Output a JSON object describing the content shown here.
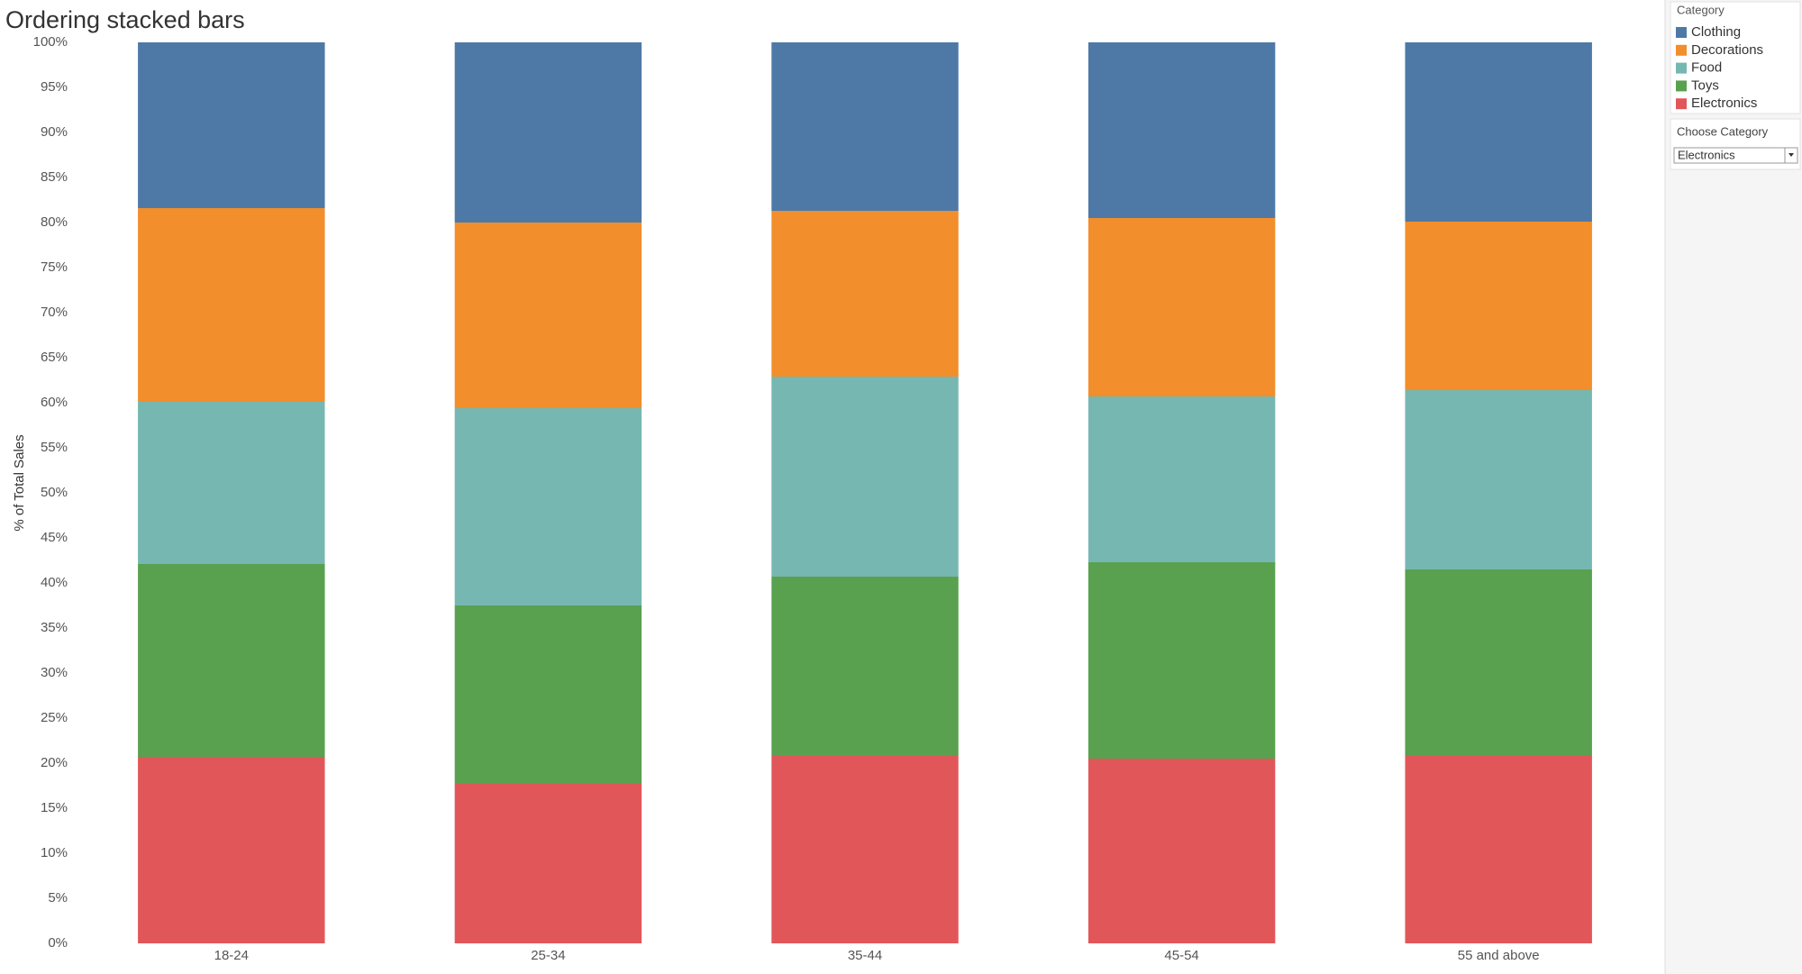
{
  "chart_data": {
    "type": "stacked_bar",
    "title": "Ordering stacked bars",
    "y_label": "% of Total Sales",
    "categories": [
      "18-24",
      "25-34",
      "35-44",
      "45-54",
      "55 and above"
    ],
    "legend_title": "Category",
    "series": [
      {
        "name": "Clothing",
        "color": "#4e79a7",
        "values": [
          18.4,
          20.0,
          18.7,
          19.5,
          19.9
        ]
      },
      {
        "name": "Decorations",
        "color": "#f28e2b",
        "values": [
          21.5,
          20.6,
          18.4,
          19.8,
          18.7
        ]
      },
      {
        "name": "Food",
        "color": "#76b7b2",
        "values": [
          18.0,
          21.9,
          22.2,
          18.4,
          19.9
        ]
      },
      {
        "name": "Toys",
        "color": "#59a14f",
        "values": [
          21.4,
          19.8,
          19.9,
          21.8,
          20.6
        ]
      },
      {
        "name": "Electronics",
        "color": "#e15759",
        "values": [
          20.7,
          17.7,
          20.8,
          20.5,
          20.9
        ]
      }
    ],
    "ylim": [
      0,
      100
    ],
    "yticks": [
      {
        "value": 0,
        "label": "0%"
      },
      {
        "value": 5,
        "label": "5%"
      },
      {
        "value": 10,
        "label": "10%"
      },
      {
        "value": 15,
        "label": "15%"
      },
      {
        "value": 20,
        "label": "20%"
      },
      {
        "value": 25,
        "label": "25%"
      },
      {
        "value": 30,
        "label": "30%"
      },
      {
        "value": 35,
        "label": "35%"
      },
      {
        "value": 40,
        "label": "40%"
      },
      {
        "value": 45,
        "label": "45%"
      },
      {
        "value": 50,
        "label": "50%"
      },
      {
        "value": 55,
        "label": "55%"
      },
      {
        "value": 60,
        "label": "60%"
      },
      {
        "value": 65,
        "label": "65%"
      },
      {
        "value": 70,
        "label": "70%"
      },
      {
        "value": 75,
        "label": "75%"
      },
      {
        "value": 80,
        "label": "80%"
      },
      {
        "value": 85,
        "label": "85%"
      },
      {
        "value": 90,
        "label": "90%"
      },
      {
        "value": 95,
        "label": "95%"
      },
      {
        "value": 100,
        "label": "100%"
      }
    ],
    "grid": false
  },
  "controls": {
    "filter_label": "Choose Category",
    "filter_value": "Electronics"
  }
}
